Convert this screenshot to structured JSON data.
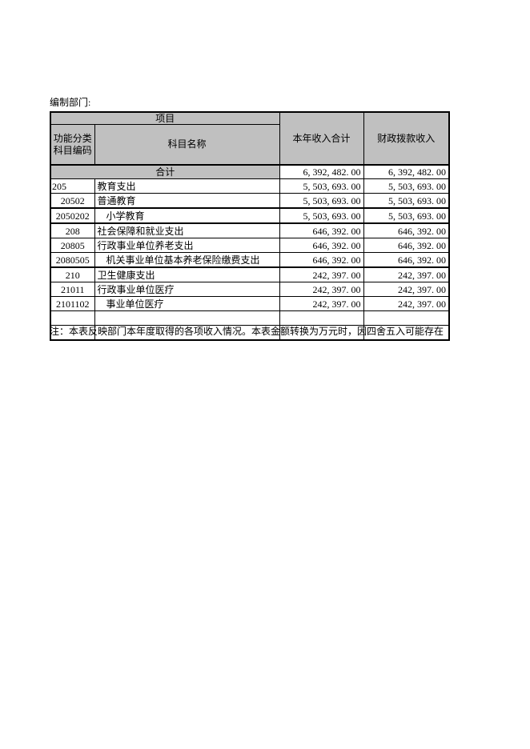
{
  "page": {
    "prepared_by_label": "编制部门:",
    "note": "注：本表反映部门本年度取得的各项收入情况。本表金额转换为万元时，因四舍五入可能存在"
  },
  "colors": {
    "header_bg": "#c0c0c0",
    "border": "#000000",
    "page_bg": "#ffffff"
  },
  "table": {
    "header": {
      "group_title": "项目",
      "col_code": "功能分类科目编码",
      "col_name": "科目名称",
      "col_total_income": "本年收入合计",
      "col_fiscal_income": "财政拨款收入"
    },
    "total_row": {
      "label": "合计",
      "total": "6, 392, 482. 00",
      "fiscal": "6, 392, 482. 00"
    },
    "rows": [
      {
        "code": "205",
        "code_align": "left",
        "name": "教育支出",
        "indent": 0,
        "total": "5, 503, 693. 00",
        "fiscal": "5, 503, 693. 00"
      },
      {
        "code": "20502",
        "code_align": "center",
        "name": "普通教育",
        "indent": 0,
        "total": "5, 503, 693. 00",
        "fiscal": "5, 503, 693. 00"
      },
      {
        "code": "2050202",
        "code_align": "center",
        "name": "小学教育",
        "indent": 1,
        "thick_top": true,
        "thick_bottom": true,
        "total": "5, 503, 693. 00",
        "fiscal": "5, 503, 693. 00"
      },
      {
        "code": "208",
        "code_align": "center",
        "name": "社会保障和就业支出",
        "indent": 0,
        "total": "646, 392. 00",
        "fiscal": "646, 392. 00"
      },
      {
        "code": "20805",
        "code_align": "center",
        "name": "行政事业单位养老支出",
        "indent": 0,
        "total": "646, 392. 00",
        "fiscal": "646, 392. 00"
      },
      {
        "code": "2080505",
        "code_align": "center",
        "name": "机关事业单位基本养老保险缴费支出",
        "indent": 1,
        "thick_bottom": true,
        "total": "646, 392. 00",
        "fiscal": "646, 392. 00"
      },
      {
        "code": "210",
        "code_align": "center",
        "name": "卫生健康支出",
        "indent": 0,
        "total": "242, 397. 00",
        "fiscal": "242, 397. 00"
      },
      {
        "code": "21011",
        "code_align": "center",
        "name": "行政事业单位医疗",
        "indent": 0,
        "total": "242, 397. 00",
        "fiscal": "242, 397. 00"
      },
      {
        "code": "2101102",
        "code_align": "center",
        "name": "事业单位医疗",
        "indent": 1,
        "total": "242, 397. 00",
        "fiscal": "242, 397. 00"
      },
      {
        "code": "",
        "code_align": "center",
        "name": "",
        "indent": 0,
        "total": "",
        "fiscal": ""
      },
      {
        "code": "",
        "code_align": "center",
        "name": "",
        "indent": 0,
        "total": "",
        "fiscal": ""
      }
    ]
  }
}
